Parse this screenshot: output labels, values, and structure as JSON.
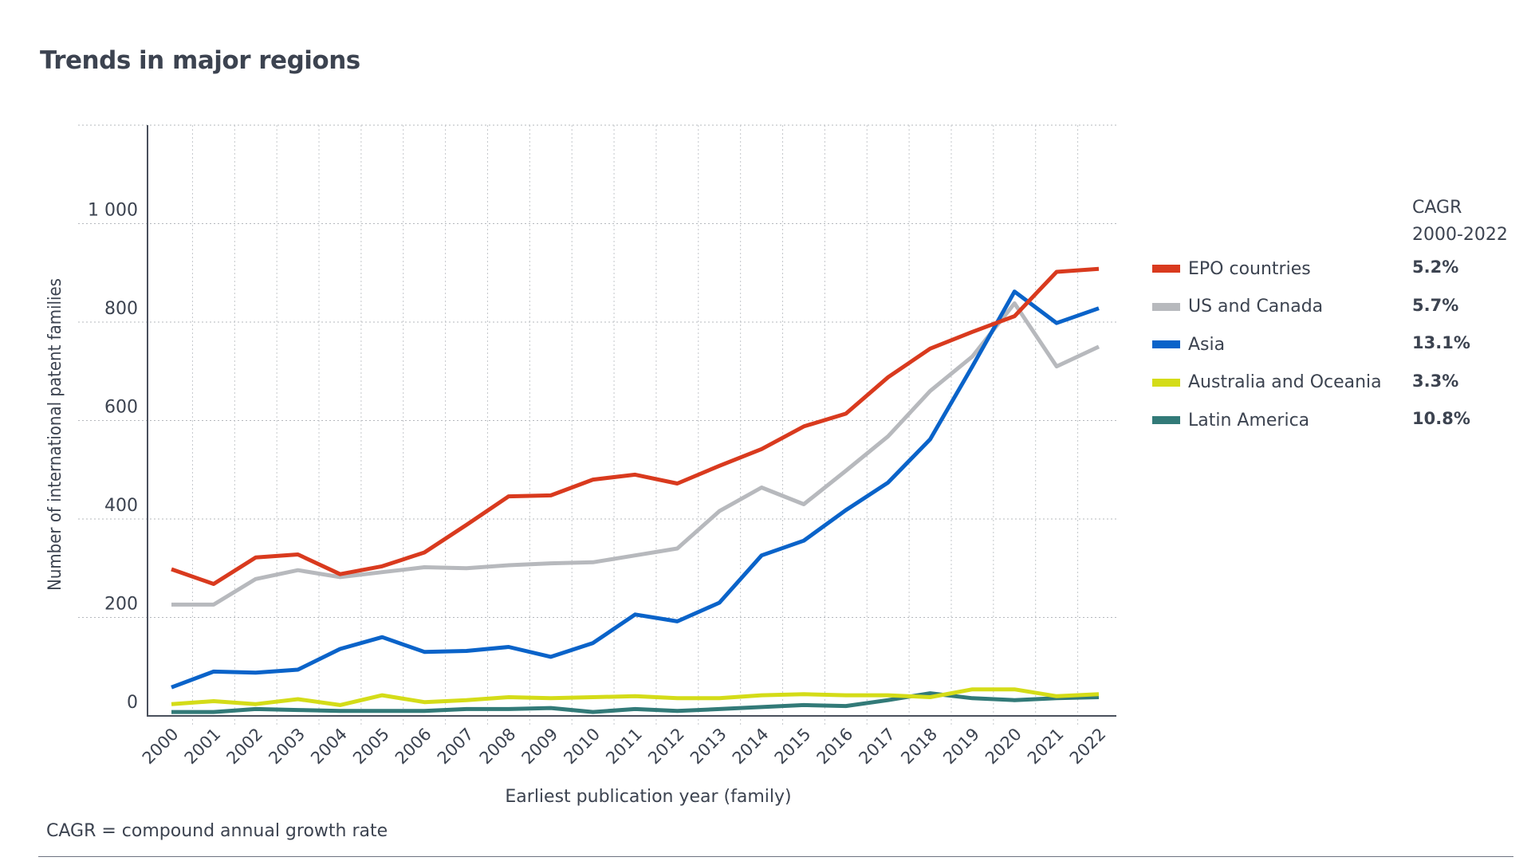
{
  "chart_data": {
    "type": "line",
    "title": "Trends in major regions",
    "xlabel": "Earliest publication year (family)",
    "ylabel": "Number of international patent families",
    "ylim": [
      0,
      1200
    ],
    "yticks": [
      0,
      200,
      400,
      600,
      800,
      1000
    ],
    "ytick_labels": [
      "0",
      "200",
      "400",
      "600",
      "800",
      "1 000"
    ],
    "grid": true,
    "legend_position": "right",
    "legend_value_header": [
      "CAGR",
      "2000-2022"
    ],
    "x": [
      "2000",
      "2001",
      "2002",
      "2003",
      "2004",
      "2005",
      "2006",
      "2007",
      "2008",
      "2009",
      "2010",
      "2011",
      "2012",
      "2013",
      "2014",
      "2015",
      "2016",
      "2017",
      "2018",
      "2019",
      "2020",
      "2021",
      "2022"
    ],
    "series": [
      {
        "name": "EPO countries",
        "color": "#d93a1e",
        "cagr": "5.2%",
        "values": [
          298,
          268,
          322,
          328,
          288,
          304,
          332,
          388,
          446,
          448,
          480,
          490,
          472,
          508,
          542,
          588,
          614,
          688,
          746,
          780,
          812,
          902,
          908
        ]
      },
      {
        "name": "US and Canada",
        "color": "#b7b9bd",
        "cagr": "5.7%",
        "values": [
          226,
          226,
          278,
          296,
          282,
          292,
          302,
          300,
          306,
          310,
          312,
          326,
          340,
          416,
          464,
          430,
          498,
          568,
          660,
          730,
          838,
          710,
          750
        ]
      },
      {
        "name": "Asia",
        "color": "#0a63c9",
        "cagr": "13.1%",
        "values": [
          58,
          90,
          88,
          94,
          136,
          160,
          130,
          132,
          140,
          120,
          148,
          206,
          192,
          230,
          326,
          356,
          418,
          474,
          562,
          710,
          862,
          798,
          828
        ]
      },
      {
        "name": "Australia and Oceania",
        "color": "#d4dc18",
        "cagr": "3.3%",
        "values": [
          24,
          30,
          24,
          34,
          22,
          42,
          28,
          32,
          38,
          36,
          38,
          40,
          36,
          36,
          42,
          44,
          42,
          42,
          38,
          54,
          54,
          40,
          44
        ]
      },
      {
        "name": "Latin America",
        "color": "#327a78",
        "cagr": "10.8%",
        "values": [
          8,
          8,
          14,
          12,
          10,
          10,
          10,
          14,
          14,
          16,
          8,
          14,
          10,
          14,
          18,
          22,
          20,
          32,
          46,
          36,
          32,
          36,
          38
        ]
      }
    ]
  },
  "footnote": "CAGR =  compound annual growth rate"
}
